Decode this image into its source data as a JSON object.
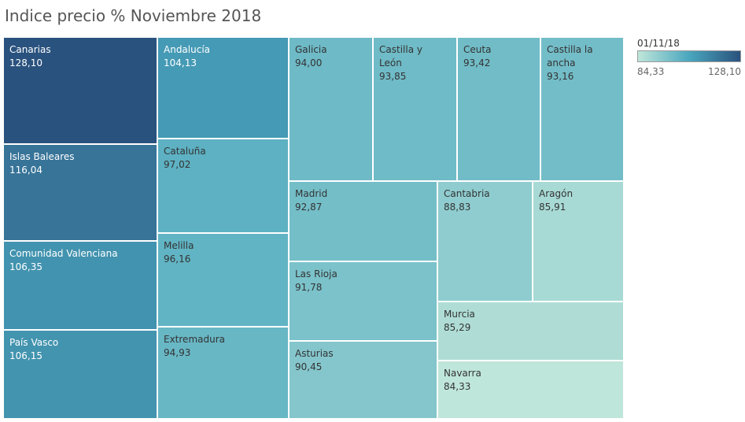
{
  "title": "Indice precio % Noviembre 2018",
  "legend": {
    "title": "01/11/18",
    "min_label": "84,33",
    "max_label": "128,10",
    "min": 84.33,
    "max": 128.1,
    "color_low": "#bfe6da",
    "color_mid": "#4aa7be",
    "color_high": "#2a527e"
  },
  "chart_data": {
    "type": "treemap",
    "title": "Indice precio % Noviembre 2018",
    "color_legend_title": "01/11/18",
    "items": [
      {
        "name": "Canarias",
        "value": 128.1,
        "label": "128,10"
      },
      {
        "name": "Islas Baleares",
        "value": 116.04,
        "label": "116,04"
      },
      {
        "name": "Comunidad Valenciana",
        "value": 106.35,
        "label": "106,35"
      },
      {
        "name": "País Vasco",
        "value": 106.15,
        "label": "106,15"
      },
      {
        "name": "Andalucía",
        "value": 104.13,
        "label": "104,13"
      },
      {
        "name": "Cataluña",
        "value": 97.02,
        "label": "97,02"
      },
      {
        "name": "Melilla",
        "value": 96.16,
        "label": "96,16"
      },
      {
        "name": "Extremadura",
        "value": 94.93,
        "label": "94,93"
      },
      {
        "name": "Galicia",
        "value": 94.0,
        "label": "94,00"
      },
      {
        "name": "Castilla y León",
        "value": 93.85,
        "label": "93,85"
      },
      {
        "name": "Ceuta",
        "value": 93.42,
        "label": "93,42"
      },
      {
        "name": "Castilla la ancha",
        "value": 93.16,
        "label": "93,16"
      },
      {
        "name": "Madrid",
        "value": 92.87,
        "label": "92,87"
      },
      {
        "name": "Las Rioja",
        "value": 91.78,
        "label": "91,78"
      },
      {
        "name": "Asturias",
        "value": 90.45,
        "label": "90,45"
      },
      {
        "name": "Cantabria",
        "value": 88.83,
        "label": "88,83"
      },
      {
        "name": "Aragón",
        "value": 85.91,
        "label": "85,91"
      },
      {
        "name": "Murcia",
        "value": 85.29,
        "label": "85,29"
      },
      {
        "name": "Navarra",
        "value": 84.33,
        "label": "84,33"
      }
    ]
  }
}
